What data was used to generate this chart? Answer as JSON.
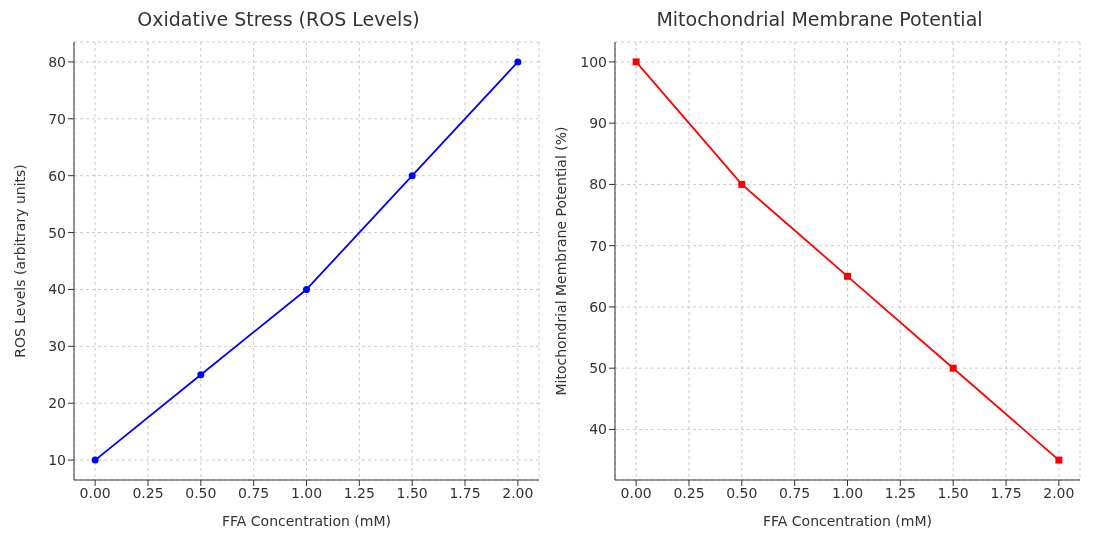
{
  "chart_data": [
    {
      "type": "line",
      "title": "Oxidative Stress (ROS Levels)",
      "xlabel": "FFA Concentration (mM)",
      "ylabel": "ROS Levels (arbitrary units)",
      "x": [
        0,
        0.5,
        1,
        1.5,
        2
      ],
      "series": [
        {
          "color": "#0000ff",
          "values": [
            10,
            25,
            40,
            60,
            80
          ]
        }
      ],
      "marker": "circle",
      "line_style": "solid",
      "grid": true,
      "xlim": [
        -0.1,
        2.1
      ],
      "ylim": [
        6.5,
        83.5
      ],
      "xticks": [
        {
          "value": 0,
          "label": "0.00"
        },
        {
          "value": 0.25,
          "label": "0.25"
        },
        {
          "value": 0.5,
          "label": "0.50"
        },
        {
          "value": 0.75,
          "label": "0.75"
        },
        {
          "value": 1,
          "label": "1.00"
        },
        {
          "value": 1.25,
          "label": "1.25"
        },
        {
          "value": 1.5,
          "label": "1.50"
        },
        {
          "value": 1.75,
          "label": "1.75"
        },
        {
          "value": 2,
          "label": "2.00"
        }
      ],
      "yticks": [
        10,
        20,
        30,
        40,
        50,
        60,
        70,
        80
      ]
    },
    {
      "type": "line",
      "title": "Mitochondrial Membrane Potential",
      "xlabel": "FFA Concentration (mM)",
      "ylabel": "Mitochondrial Membrane Potential (%)",
      "x": [
        0,
        0.5,
        1,
        1.5,
        2
      ],
      "series": [
        {
          "color": "#ff0000",
          "values": [
            100,
            80,
            65,
            50,
            35
          ]
        }
      ],
      "marker": "square",
      "line_style": "solid",
      "grid": true,
      "xlim": [
        -0.1,
        2.1
      ],
      "ylim": [
        31.75,
        103.25
      ],
      "xticks": [
        {
          "value": 0,
          "label": "0.00"
        },
        {
          "value": 0.25,
          "label": "0.25"
        },
        {
          "value": 0.5,
          "label": "0.50"
        },
        {
          "value": 0.75,
          "label": "0.75"
        },
        {
          "value": 1,
          "label": "1.00"
        },
        {
          "value": 1.25,
          "label": "1.25"
        },
        {
          "value": 1.5,
          "label": "1.50"
        },
        {
          "value": 1.75,
          "label": "1.75"
        },
        {
          "value": 2,
          "label": "2.00"
        }
      ],
      "yticks": [
        40,
        50,
        60,
        70,
        80,
        90,
        100
      ]
    }
  ]
}
